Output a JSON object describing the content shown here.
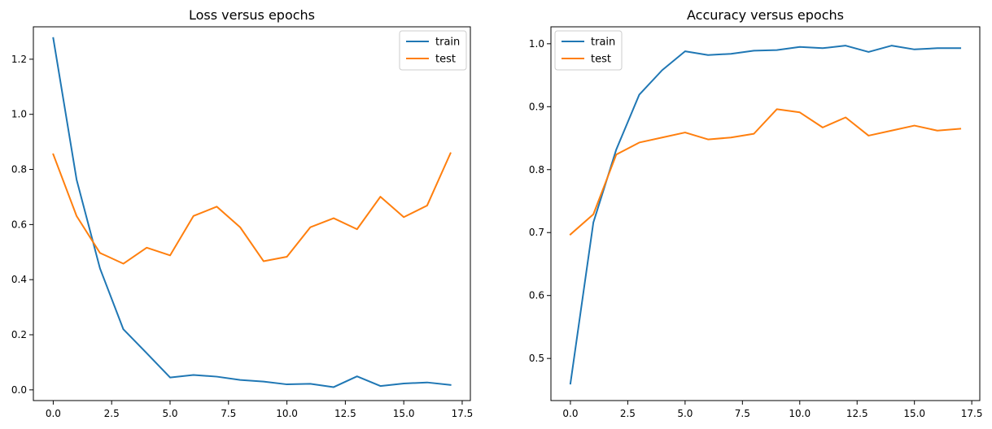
{
  "colors": {
    "train": "#1f77b4",
    "test": "#ff7f0e",
    "axis": "#000000",
    "legend_edge": "#cccccc"
  },
  "chart_data": [
    {
      "type": "line",
      "title": "Loss versus epochs",
      "xlabel": "",
      "ylabel": "",
      "xlim": [
        -0.85,
        17.85
      ],
      "ylim": [
        -0.0388,
        1.3176
      ],
      "xticks": [
        0.0,
        2.5,
        5.0,
        7.5,
        10.0,
        12.5,
        15.0,
        17.5
      ],
      "xtick_labels": [
        "0.0",
        "2.5",
        "5.0",
        "7.5",
        "10.0",
        "12.5",
        "15.0",
        "17.5"
      ],
      "yticks": [
        0.0,
        0.2,
        0.4,
        0.6,
        0.8,
        1.0,
        1.2
      ],
      "ytick_labels": [
        "0.0",
        "0.2",
        "0.4",
        "0.6",
        "0.8",
        "1.0",
        "1.2"
      ],
      "grid": false,
      "legend_position": "upper right",
      "x": [
        0,
        1,
        2,
        3,
        4,
        5,
        6,
        7,
        8,
        9,
        10,
        11,
        12,
        13,
        14,
        15,
        16,
        17
      ],
      "series": [
        {
          "name": "train",
          "color": "#1f77b4",
          "values": [
            1.277,
            0.763,
            0.441,
            0.22,
            0.133,
            0.045,
            0.054,
            0.048,
            0.036,
            0.03,
            0.02,
            0.022,
            0.01,
            0.049,
            0.014,
            0.023,
            0.027,
            0.018
          ]
        },
        {
          "name": "test",
          "color": "#ff7f0e",
          "values": [
            0.855,
            0.631,
            0.497,
            0.458,
            0.516,
            0.488,
            0.631,
            0.665,
            0.59,
            0.467,
            0.483,
            0.59,
            0.623,
            0.583,
            0.701,
            0.627,
            0.669,
            0.859
          ]
        }
      ]
    },
    {
      "type": "line",
      "title": "Accuracy versus epochs",
      "xlabel": "",
      "ylabel": "",
      "xlim": [
        -0.85,
        17.85
      ],
      "ylim": [
        0.4331,
        1.0269
      ],
      "xticks": [
        0.0,
        2.5,
        5.0,
        7.5,
        10.0,
        12.5,
        15.0,
        17.5
      ],
      "xtick_labels": [
        "0.0",
        "2.5",
        "5.0",
        "7.5",
        "10.0",
        "12.5",
        "15.0",
        "17.5"
      ],
      "yticks": [
        0.5,
        0.6,
        0.7,
        0.8,
        0.9,
        1.0
      ],
      "ytick_labels": [
        "0.5",
        "0.6",
        "0.7",
        "0.8",
        "0.9",
        "1.0"
      ],
      "grid": false,
      "legend_position": "upper left",
      "x": [
        0,
        1,
        2,
        3,
        4,
        5,
        6,
        7,
        8,
        9,
        10,
        11,
        12,
        13,
        14,
        15,
        16,
        17
      ],
      "series": [
        {
          "name": "train",
          "color": "#1f77b4",
          "values": [
            0.46,
            0.716,
            0.832,
            0.919,
            0.958,
            0.988,
            0.982,
            0.984,
            0.989,
            0.99,
            0.995,
            0.993,
            0.997,
            0.987,
            0.997,
            0.991,
            0.993,
            0.993
          ]
        },
        {
          "name": "test",
          "color": "#ff7f0e",
          "values": [
            0.697,
            0.729,
            0.824,
            0.843,
            0.851,
            0.859,
            0.848,
            0.851,
            0.857,
            0.896,
            0.891,
            0.867,
            0.883,
            0.854,
            0.862,
            0.87,
            0.862,
            0.865
          ]
        }
      ]
    }
  ]
}
